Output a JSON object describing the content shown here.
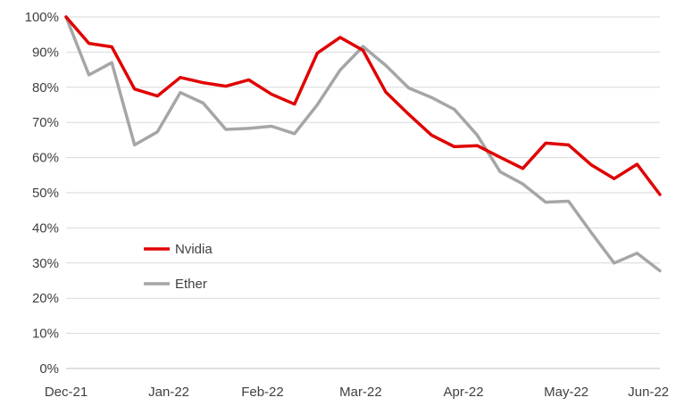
{
  "chart_data": {
    "type": "line",
    "title": "",
    "xlabel": "",
    "ylabel": "",
    "ylim": [
      0,
      100
    ],
    "y_ticks": [
      "0%",
      "10%",
      "20%",
      "30%",
      "40%",
      "50%",
      "60%",
      "70%",
      "80%",
      "90%",
      "100%"
    ],
    "x_tick_labels": [
      "Dec-21",
      "Jan-22",
      "Feb-22",
      "Mar-22",
      "Apr-22",
      "May-22",
      "Jun-22"
    ],
    "grid": true,
    "legend_position": "lower-left",
    "x": [
      "2021-12-01",
      "2021-12-08",
      "2021-12-15",
      "2021-12-22",
      "2021-12-29",
      "2022-01-05",
      "2022-01-12",
      "2022-01-19",
      "2022-01-26",
      "2022-02-02",
      "2022-02-09",
      "2022-02-16",
      "2022-02-23",
      "2022-03-02",
      "2022-03-09",
      "2022-03-16",
      "2022-03-23",
      "2022-03-30",
      "2022-04-06",
      "2022-04-13",
      "2022-04-20",
      "2022-04-27",
      "2022-05-04",
      "2022-05-11",
      "2022-05-18",
      "2022-05-25",
      "2022-06-01"
    ],
    "series": [
      {
        "name": "Nvidia",
        "color": "#e00000",
        "values": [
          100,
          92.5,
          91.5,
          79.5,
          77.5,
          82.8,
          81.3,
          80.3,
          82.1,
          78,
          75.2,
          89.7,
          94.2,
          90.5,
          78.6,
          72.3,
          66.4,
          63.1,
          63.4,
          60.1,
          56.9,
          64.1,
          63.6,
          57.9,
          54,
          58.1,
          49.5
        ]
      },
      {
        "name": "Ether",
        "color": "#a6a6a6",
        "values": [
          100,
          83.5,
          87,
          63.6,
          67.3,
          78.5,
          75.5,
          68,
          68.3,
          68.9,
          66.8,
          75,
          84.9,
          91.6,
          86.2,
          79.8,
          77.1,
          73.7,
          66.4,
          56,
          52.5,
          47.3,
          47.6,
          38.6,
          30,
          32.8,
          27.8
        ]
      }
    ]
  }
}
